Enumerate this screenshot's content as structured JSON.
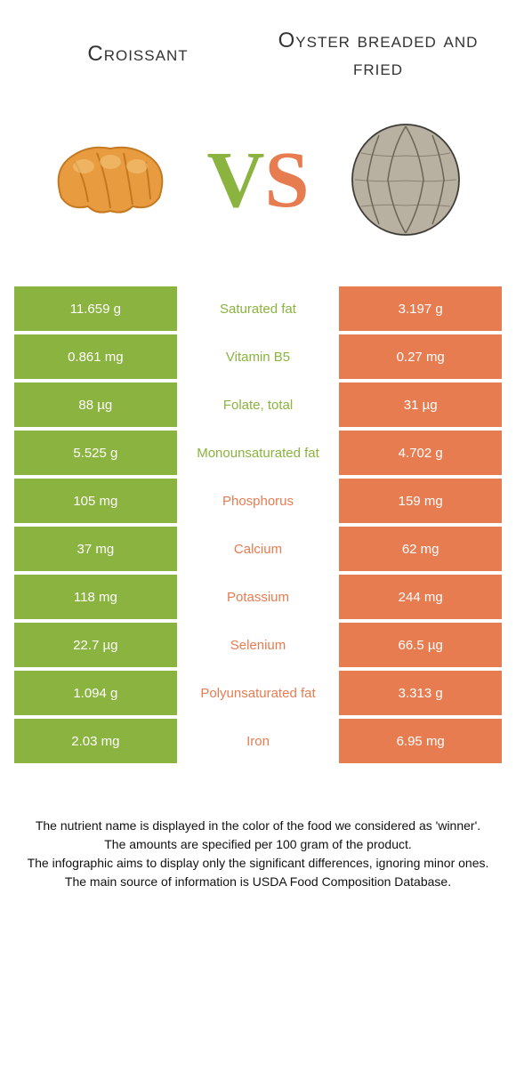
{
  "header": {
    "left": "Croissant",
    "right": "Oyster breaded and fried"
  },
  "vs": {
    "v": "V",
    "s": "S"
  },
  "colors": {
    "green": "#8ab33f",
    "orange": "#e87c51",
    "croissant_body": "#e89b3f",
    "croissant_light": "#f4c57a",
    "oyster_shell": "#b8b0a0",
    "oyster_dark": "#6b6558"
  },
  "rows": [
    {
      "left": "11.659 g",
      "label": "Saturated fat",
      "right": "3.197 g",
      "winner": "green"
    },
    {
      "left": "0.861 mg",
      "label": "Vitamin B5",
      "right": "0.27 mg",
      "winner": "green"
    },
    {
      "left": "88 µg",
      "label": "Folate, total",
      "right": "31 µg",
      "winner": "green"
    },
    {
      "left": "5.525 g",
      "label": "Monounsaturated fat",
      "right": "4.702 g",
      "winner": "green"
    },
    {
      "left": "105 mg",
      "label": "Phosphorus",
      "right": "159 mg",
      "winner": "orange"
    },
    {
      "left": "37 mg",
      "label": "Calcium",
      "right": "62 mg",
      "winner": "orange"
    },
    {
      "left": "118 mg",
      "label": "Potassium",
      "right": "244 mg",
      "winner": "orange"
    },
    {
      "left": "22.7 µg",
      "label": "Selenium",
      "right": "66.5 µg",
      "winner": "orange"
    },
    {
      "left": "1.094 g",
      "label": "Polyunsaturated fat",
      "right": "3.313 g",
      "winner": "orange"
    },
    {
      "left": "2.03 mg",
      "label": "Iron",
      "right": "6.95 mg",
      "winner": "orange"
    }
  ],
  "footer": {
    "l1": "The nutrient name is displayed in the color of the food we considered as 'winner'.",
    "l2": "The amounts are specified per 100 gram of the product.",
    "l3": "The infographic aims to display only the significant differences, ignoring minor ones.",
    "l4": "The main source of information is USDA Food Composition Database."
  }
}
